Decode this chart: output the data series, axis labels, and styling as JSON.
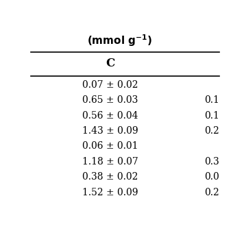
{
  "header_top": "(mmol g⁻¹)",
  "col_headers": [
    "C",
    ""
  ],
  "rows": [
    [
      "0.07 ± 0.02",
      ""
    ],
    [
      "0.65 ± 0.03",
      "0.1"
    ],
    [
      "0.56 ± 0.04",
      "0.1"
    ],
    [
      "1.43 ± 0.09",
      "0.2"
    ],
    [
      "0.06 ± 0.01",
      ""
    ],
    [
      "1.18 ± 0.07",
      "0.3"
    ],
    [
      "0.38 ± 0.02",
      "0.0"
    ],
    [
      "1.52 ± 0.09",
      "0.2"
    ]
  ],
  "background_color": "#ffffff",
  "text_color": "#000000",
  "font_size": 10,
  "header_font_size": 11
}
